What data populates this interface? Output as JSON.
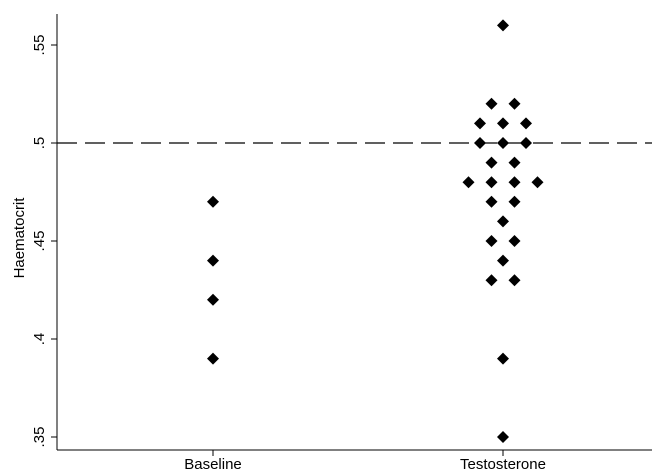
{
  "chart_data": {
    "type": "scatter",
    "title": "",
    "xlabel": "",
    "ylabel": "Haematocrit",
    "categories": [
      "Baseline",
      "Testosterone"
    ],
    "yticks": [
      ".35",
      ".4",
      ".45",
      ".5",
      ".55"
    ],
    "ytick_values": [
      0.35,
      0.4,
      0.45,
      0.5,
      0.55
    ],
    "ylim": [
      0.35,
      0.56
    ],
    "reference_line": {
      "y": 0.5,
      "style": "dashed"
    },
    "marker": "diamond",
    "marker_color": "#000000",
    "grid": false,
    "series": [
      {
        "category": "Baseline",
        "values": [
          0.47,
          0.44,
          0.42,
          0.39
        ]
      },
      {
        "category": "Testosterone",
        "values": [
          0.56,
          0.52,
          0.52,
          0.51,
          0.51,
          0.51,
          0.5,
          0.5,
          0.5,
          0.49,
          0.49,
          0.48,
          0.48,
          0.48,
          0.48,
          0.47,
          0.47,
          0.46,
          0.45,
          0.45,
          0.44,
          0.43,
          0.43,
          0.39,
          0.35
        ]
      }
    ]
  }
}
